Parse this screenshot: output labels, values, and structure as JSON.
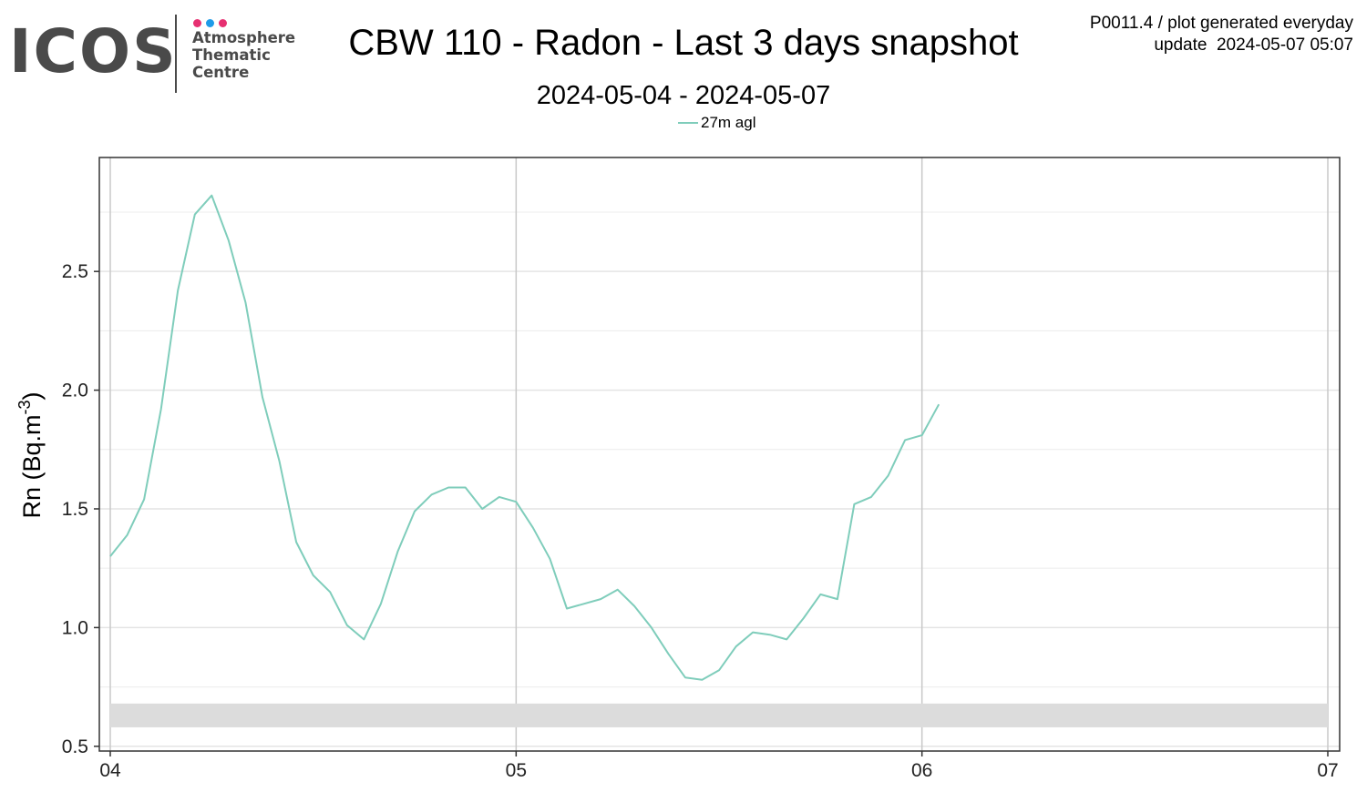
{
  "logo": {
    "word": "ICOS",
    "lines": [
      "Atmosphere",
      "Thematic",
      "Centre"
    ],
    "dot_colors": [
      "#e63071",
      "#1e9be8",
      "#e63071"
    ],
    "text_color": "#4a4a4a"
  },
  "header": {
    "title": "CBW 110 - Radon - Last 3 days snapshot",
    "subtitle": "2024-05-04 - 2024-05-07",
    "meta_line1": "P0011.4 / plot generated everyday",
    "meta_line2": "update  2024-05-07 05:07"
  },
  "legend": {
    "label": "27m agl"
  },
  "chart_data": {
    "type": "line",
    "title": "CBW 110 - Radon - Last 3 days snapshot",
    "subtitle": "2024-05-04 - 2024-05-07",
    "ylabel_base": "Rn (Bq.m",
    "ylabel_sup": "-3",
    "ylabel_tail": ")",
    "xlim": [
      0,
      3
    ],
    "ylim": [
      0.48,
      2.98
    ],
    "xticks": [
      0,
      1,
      2,
      3
    ],
    "xtick_labels": [
      "04",
      "05",
      "06",
      "07"
    ],
    "yticks": [
      0.5,
      1.0,
      1.5,
      2.0,
      2.5
    ],
    "ytick_labels": [
      "0.5",
      "1.0",
      "1.5",
      "2.0",
      "2.5"
    ],
    "grid": true,
    "legend_position": "top-center",
    "band": {
      "y_from": 0.58,
      "y_to": 0.68,
      "color": "#dcdcdc"
    },
    "series": [
      {
        "name": "27m agl",
        "color": "#7fcdbb",
        "x": [
          0.0,
          0.0417,
          0.0833,
          0.125,
          0.1667,
          0.2083,
          0.25,
          0.2917,
          0.3333,
          0.375,
          0.4167,
          0.4583,
          0.5,
          0.5417,
          0.5833,
          0.625,
          0.6667,
          0.7083,
          0.75,
          0.7917,
          0.8333,
          0.875,
          0.9167,
          0.9583,
          1.0,
          1.0417,
          1.0833,
          1.125,
          1.1667,
          1.2083,
          1.25,
          1.2917,
          1.3333,
          1.375,
          1.4167,
          1.4583,
          1.5,
          1.5417,
          1.5833,
          1.625,
          1.6667,
          1.7083,
          1.75,
          1.7917,
          1.8333,
          1.875,
          1.9167,
          1.9583,
          2.0,
          2.0417
        ],
        "y": [
          1.3,
          1.39,
          1.54,
          1.92,
          2.42,
          2.74,
          2.82,
          2.63,
          2.37,
          1.97,
          1.7,
          1.36,
          1.22,
          1.15,
          1.01,
          0.95,
          1.1,
          1.32,
          1.49,
          1.56,
          1.59,
          1.59,
          1.5,
          1.55,
          1.53,
          1.42,
          1.29,
          1.08,
          1.1,
          1.12,
          1.16,
          1.09,
          1.0,
          0.89,
          0.79,
          0.78,
          0.82,
          0.92,
          0.98,
          0.97,
          0.95,
          1.04,
          1.14,
          1.12,
          1.52,
          1.55,
          1.64,
          1.79,
          1.81,
          1.94
        ]
      }
    ]
  }
}
